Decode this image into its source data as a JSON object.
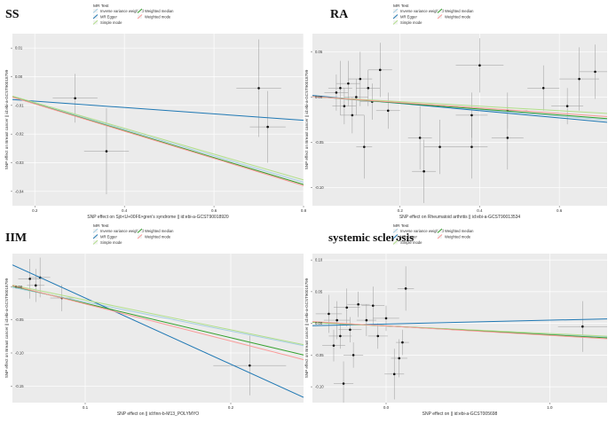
{
  "colors": {
    "ivw": "#a6cee3",
    "egger": "#1f78b4",
    "simple": "#b2df8a",
    "wmedian": "#33a02c",
    "wmode": "#fb9a99"
  },
  "legend": {
    "title": "MR Test",
    "items": [
      {
        "key": "ivw",
        "label": "Inverse variance weighted"
      },
      {
        "key": "wmedian",
        "label": "Weighted median"
      },
      {
        "key": "egger",
        "label": "MR Egger"
      },
      {
        "key": "wmode",
        "label": "Weighted mode"
      },
      {
        "key": "simple",
        "label": "Simple mode"
      }
    ]
  },
  "chart_data": [
    {
      "type": "scatter",
      "title": "SS",
      "xlabel": "SNP effect on Sjö<U+00F6>gren's syndrome || id:ebi-a-GCST90018920",
      "ylabel": "SNP effect on Breast cancer || id:ebi-a-GCST90018799",
      "xlim": [
        0.15,
        0.8
      ],
      "ylim": [
        -0.045,
        0.015
      ],
      "xticks": [
        0.2,
        0.4,
        0.6,
        0.8
      ],
      "xticklabels": [
        "0.2",
        "0.4",
        "0.6",
        "0.8"
      ],
      "yticks": [
        0.01,
        0.0,
        -0.01,
        -0.02,
        -0.03,
        -0.04
      ],
      "yticklabels": [
        "0.01",
        "0.00",
        "-0.01",
        "-0.02",
        "-0.03",
        "-0.04"
      ],
      "points": [
        {
          "x": 0.29,
          "y": -0.0075,
          "xerr": 0.05,
          "yerr": 0.0085
        },
        {
          "x": 0.36,
          "y": -0.026,
          "xerr": 0.05,
          "yerr": 0.015
        },
        {
          "x": 0.7,
          "y": -0.004,
          "xerr": 0.05,
          "yerr": 0.017
        },
        {
          "x": 0.72,
          "y": -0.0175,
          "xerr": 0.04,
          "yerr": 0.0125
        }
      ],
      "lines": [
        {
          "key": "ivw",
          "slope": -0.046,
          "intercept": 0.0
        },
        {
          "key": "egger",
          "slope": -0.0111,
          "intercept": -0.0063
        },
        {
          "key": "simple",
          "slope": -0.045,
          "intercept": 0.0
        },
        {
          "key": "wmedian",
          "slope": -0.047,
          "intercept": 0.0
        },
        {
          "key": "wmode",
          "slope": -0.0475,
          "intercept": 0.0
        }
      ]
    },
    {
      "type": "scatter",
      "title": "RA",
      "xlabel": "SNP effect on Rheumatoid arthritis || id:ebi-a-GCST90013534",
      "ylabel": "SNP effect on Breast cancer || id:ebi-a-GCST90018799",
      "xlim": [
        -0.02,
        0.72
      ],
      "ylim": [
        -0.12,
        0.07
      ],
      "xticks": [
        0.2,
        0.4,
        0.6
      ],
      "xticklabels": [
        "0.2",
        "0.4",
        "0.6"
      ],
      "yticks": [
        0.05,
        0.0,
        -0.05,
        -0.1
      ],
      "yticklabels": [
        "0.05",
        "0.00",
        "-0.05",
        "-0.10"
      ],
      "points": [
        {
          "x": 0.04,
          "y": 0.005,
          "xerr": 0.03,
          "yerr": 0.02
        },
        {
          "x": 0.05,
          "y": 0.01,
          "xerr": 0.03,
          "yerr": 0.03
        },
        {
          "x": 0.06,
          "y": -0.01,
          "xerr": 0.03,
          "yerr": 0.02
        },
        {
          "x": 0.07,
          "y": 0.015,
          "xerr": 0.03,
          "yerr": 0.025
        },
        {
          "x": 0.08,
          "y": -0.02,
          "xerr": 0.03,
          "yerr": 0.02
        },
        {
          "x": 0.09,
          "y": 0.0,
          "xerr": 0.03,
          "yerr": 0.02
        },
        {
          "x": 0.1,
          "y": 0.02,
          "xerr": 0.03,
          "yerr": 0.03
        },
        {
          "x": 0.11,
          "y": -0.055,
          "xerr": 0.02,
          "yerr": 0.035
        },
        {
          "x": 0.12,
          "y": 0.01,
          "xerr": 0.03,
          "yerr": 0.02
        },
        {
          "x": 0.13,
          "y": -0.005,
          "xerr": 0.03,
          "yerr": 0.02
        },
        {
          "x": 0.15,
          "y": 0.03,
          "xerr": 0.03,
          "yerr": 0.03
        },
        {
          "x": 0.17,
          "y": -0.015,
          "xerr": 0.03,
          "yerr": 0.02
        },
        {
          "x": 0.25,
          "y": -0.045,
          "xerr": 0.03,
          "yerr": 0.035
        },
        {
          "x": 0.26,
          "y": -0.082,
          "xerr": 0.03,
          "yerr": 0.035
        },
        {
          "x": 0.3,
          "y": -0.055,
          "xerr": 0.04,
          "yerr": 0.03
        },
        {
          "x": 0.38,
          "y": -0.055,
          "xerr": 0.04,
          "yerr": 0.035
        },
        {
          "x": 0.38,
          "y": -0.02,
          "xerr": 0.04,
          "yerr": 0.025
        },
        {
          "x": 0.4,
          "y": 0.035,
          "xerr": 0.06,
          "yerr": 0.03
        },
        {
          "x": 0.47,
          "y": -0.045,
          "xerr": 0.04,
          "yerr": 0.035
        },
        {
          "x": 0.47,
          "y": -0.015,
          "xerr": 0.05,
          "yerr": 0.02
        },
        {
          "x": 0.56,
          "y": 0.01,
          "xerr": 0.04,
          "yerr": 0.025
        },
        {
          "x": 0.62,
          "y": -0.01,
          "xerr": 0.04,
          "yerr": 0.02
        },
        {
          "x": 0.65,
          "y": 0.02,
          "xerr": 0.05,
          "yerr": 0.035
        },
        {
          "x": 0.69,
          "y": 0.028,
          "xerr": 0.04,
          "yerr": 0.03
        }
      ],
      "lines": [
        {
          "key": "ivw",
          "slope": -0.035,
          "intercept": 0.0
        },
        {
          "key": "egger",
          "slope": -0.04,
          "intercept": 0.001
        },
        {
          "key": "simple",
          "slope": -0.025,
          "intercept": 0.0
        },
        {
          "key": "wmedian",
          "slope": -0.033,
          "intercept": 0.0
        },
        {
          "key": "wmode",
          "slope": -0.03,
          "intercept": 0.0
        }
      ]
    },
    {
      "type": "scatter",
      "title": "IIM",
      "xlabel": "SNP effect on || id:finn-b-M13_POLYMYO",
      "ylabel": "SNP effect on Breast cancer || id:ebi-a-GCST90018799",
      "xlim": [
        0.05,
        0.25
      ],
      "ylim": [
        -0.175,
        0.05
      ],
      "xticks": [
        0.1,
        0.2
      ],
      "xticklabels": [
        "0.1",
        "0.2"
      ],
      "yticks": [
        0.0,
        -0.05,
        -0.1,
        -0.15
      ],
      "yticklabels": [
        "0.00",
        "-0.05",
        "-0.10",
        "-0.15"
      ],
      "points": [
        {
          "x": 0.062,
          "y": 0.012,
          "xerr": 0.008,
          "yerr": 0.03
        },
        {
          "x": 0.066,
          "y": 0.002,
          "xerr": 0.006,
          "yerr": 0.025
        },
        {
          "x": 0.069,
          "y": 0.014,
          "xerr": 0.007,
          "yerr": 0.03
        },
        {
          "x": 0.084,
          "y": -0.017,
          "xerr": 0.008,
          "yerr": 0.02
        },
        {
          "x": 0.213,
          "y": -0.119,
          "xerr": 0.025,
          "yerr": 0.045
        }
      ],
      "lines": [
        {
          "key": "ivw",
          "slope": -0.44,
          "intercept": 0.021
        },
        {
          "key": "egger",
          "slope": -1.0,
          "intercept": 0.083
        },
        {
          "key": "simple",
          "slope": -0.45,
          "intercept": 0.025
        },
        {
          "key": "wmedian",
          "slope": -0.52,
          "intercept": 0.027
        },
        {
          "key": "wmode",
          "slope": -0.56,
          "intercept": 0.03
        }
      ]
    },
    {
      "type": "scatter",
      "title": "systemic sclerosis",
      "xlabel": "SNP effect on || id:ebi-a-GCST005698",
      "ylabel": "SNP effect on Breast cancer || id:ebi-a-GCST90018799",
      "xlim": [
        -0.45,
        1.35
      ],
      "ylim": [
        -0.125,
        0.11
      ],
      "xticks": [
        0.0,
        1.0
      ],
      "xticklabels": [
        "0.0",
        "1.0"
      ],
      "yticks": [
        0.1,
        0.05,
        0.0,
        -0.05,
        -0.1
      ],
      "yticklabels": [
        "0.10",
        "0.05",
        "0.00",
        "-0.05",
        "-0.10"
      ],
      "points": [
        {
          "x": -0.35,
          "y": 0.015,
          "xerr": 0.08,
          "yerr": 0.03
        },
        {
          "x": -0.32,
          "y": -0.035,
          "xerr": 0.07,
          "yerr": 0.025
        },
        {
          "x": -0.3,
          "y": 0.005,
          "xerr": 0.08,
          "yerr": 0.03
        },
        {
          "x": -0.28,
          "y": -0.02,
          "xerr": 0.07,
          "yerr": 0.02
        },
        {
          "x": -0.26,
          "y": -0.095,
          "xerr": 0.06,
          "yerr": 0.035
        },
        {
          "x": -0.24,
          "y": 0.025,
          "xerr": 0.08,
          "yerr": 0.03
        },
        {
          "x": -0.22,
          "y": -0.01,
          "xerr": 0.07,
          "yerr": 0.02
        },
        {
          "x": -0.2,
          "y": -0.05,
          "xerr": 0.06,
          "yerr": 0.02
        },
        {
          "x": -0.17,
          "y": 0.03,
          "xerr": 0.07,
          "yerr": 0.02
        },
        {
          "x": -0.12,
          "y": 0.005,
          "xerr": 0.06,
          "yerr": 0.025
        },
        {
          "x": -0.08,
          "y": 0.028,
          "xerr": 0.07,
          "yerr": 0.03
        },
        {
          "x": -0.05,
          "y": -0.02,
          "xerr": 0.06,
          "yerr": 0.02
        },
        {
          "x": 0.0,
          "y": 0.008,
          "xerr": 0.08,
          "yerr": 0.02
        },
        {
          "x": 0.05,
          "y": -0.08,
          "xerr": 0.06,
          "yerr": 0.04
        },
        {
          "x": 0.08,
          "y": -0.055,
          "xerr": 0.05,
          "yerr": 0.03
        },
        {
          "x": 0.1,
          "y": -0.03,
          "xerr": 0.04,
          "yerr": 0.02
        },
        {
          "x": 0.12,
          "y": 0.055,
          "xerr": 0.05,
          "yerr": 0.035
        },
        {
          "x": 1.2,
          "y": -0.005,
          "xerr": 0.15,
          "yerr": 0.04
        }
      ],
      "lines": [
        {
          "key": "ivw",
          "slope": -0.013,
          "intercept": -0.004
        },
        {
          "key": "egger",
          "slope": 0.006,
          "intercept": -0.001
        },
        {
          "key": "simple",
          "slope": -0.012,
          "intercept": -0.004
        },
        {
          "key": "wmedian",
          "slope": -0.014,
          "intercept": -0.004
        },
        {
          "key": "wmode",
          "slope": -0.015,
          "intercept": -0.004
        }
      ]
    }
  ]
}
